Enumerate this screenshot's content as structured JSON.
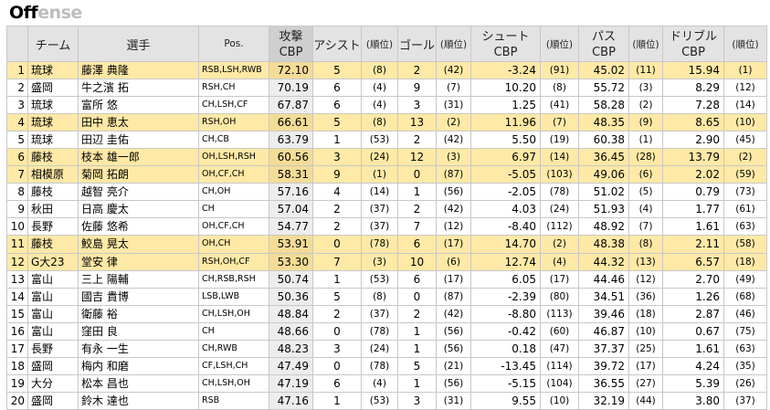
{
  "title_part1": "Off",
  "title_part2": "ense",
  "header": {
    "team": "チーム",
    "player": "選手",
    "pos": "Pos.",
    "attack": "攻撃",
    "assist": "アシスト",
    "rank": "(順位)",
    "goal": "ゴール",
    "shoot": "シュート",
    "pass": "パス",
    "dribble": "ドリブル",
    "cbp": "CBP"
  },
  "rows": [
    {
      "rank": "1",
      "team": "琉球",
      "player": "藤澤 典隆",
      "pos": "RSB,LSH,RWB",
      "cbp": "72.10",
      "assist": "5",
      "assist_rank": "(8)",
      "goal": "2",
      "goal_rank": "(42)",
      "shoot": "-3.24",
      "shoot_rank": "(91)",
      "pass": "45.02",
      "pass_rank": "(11)",
      "dribble": "15.94",
      "dribble_rank": "(1)",
      "hl": true
    },
    {
      "rank": "2",
      "team": "盛岡",
      "player": "牛之濱 拓",
      "pos": "RSH,CH",
      "cbp": "70.19",
      "assist": "6",
      "assist_rank": "(4)",
      "goal": "9",
      "goal_rank": "(7)",
      "shoot": "10.20",
      "shoot_rank": "(8)",
      "pass": "55.72",
      "pass_rank": "(3)",
      "dribble": "8.29",
      "dribble_rank": "(12)",
      "hl": false
    },
    {
      "rank": "3",
      "team": "琉球",
      "player": "富所 悠",
      "pos": "CH,LSH,CF",
      "cbp": "67.87",
      "assist": "6",
      "assist_rank": "(4)",
      "goal": "3",
      "goal_rank": "(31)",
      "shoot": "1.25",
      "shoot_rank": "(41)",
      "pass": "58.28",
      "pass_rank": "(2)",
      "dribble": "7.28",
      "dribble_rank": "(14)",
      "hl": false
    },
    {
      "rank": "4",
      "team": "琉球",
      "player": "田中 恵太",
      "pos": "RSH,OH",
      "cbp": "66.61",
      "assist": "5",
      "assist_rank": "(8)",
      "goal": "13",
      "goal_rank": "(2)",
      "shoot": "11.96",
      "shoot_rank": "(7)",
      "pass": "48.35",
      "pass_rank": "(9)",
      "dribble": "8.65",
      "dribble_rank": "(10)",
      "hl": true
    },
    {
      "rank": "5",
      "team": "琉球",
      "player": "田辺 圭佑",
      "pos": "CH,CB",
      "cbp": "63.79",
      "assist": "1",
      "assist_rank": "(53)",
      "goal": "2",
      "goal_rank": "(42)",
      "shoot": "5.50",
      "shoot_rank": "(19)",
      "pass": "60.38",
      "pass_rank": "(1)",
      "dribble": "2.90",
      "dribble_rank": "(45)",
      "hl": false
    },
    {
      "rank": "6",
      "team": "藤枝",
      "player": "枝本 雄一郎",
      "pos": "OH,LSH,RSH",
      "cbp": "60.56",
      "assist": "3",
      "assist_rank": "(24)",
      "goal": "12",
      "goal_rank": "(3)",
      "shoot": "6.97",
      "shoot_rank": "(14)",
      "pass": "36.45",
      "pass_rank": "(28)",
      "dribble": "13.79",
      "dribble_rank": "(2)",
      "hl": true
    },
    {
      "rank": "7",
      "team": "相模原",
      "player": "菊岡 拓朗",
      "pos": "OH,CF,CH",
      "cbp": "58.31",
      "assist": "9",
      "assist_rank": "(1)",
      "goal": "0",
      "goal_rank": "(87)",
      "shoot": "-5.05",
      "shoot_rank": "(103)",
      "pass": "49.06",
      "pass_rank": "(6)",
      "dribble": "2.02",
      "dribble_rank": "(59)",
      "hl": true
    },
    {
      "rank": "8",
      "team": "藤枝",
      "player": "越智 亮介",
      "pos": "CH,OH",
      "cbp": "57.16",
      "assist": "4",
      "assist_rank": "(14)",
      "goal": "1",
      "goal_rank": "(56)",
      "shoot": "-2.05",
      "shoot_rank": "(78)",
      "pass": "51.02",
      "pass_rank": "(5)",
      "dribble": "0.79",
      "dribble_rank": "(73)",
      "hl": false
    },
    {
      "rank": "9",
      "team": "秋田",
      "player": "日高 慶太",
      "pos": "CH",
      "cbp": "57.04",
      "assist": "2",
      "assist_rank": "(37)",
      "goal": "2",
      "goal_rank": "(42)",
      "shoot": "4.03",
      "shoot_rank": "(24)",
      "pass": "51.93",
      "pass_rank": "(4)",
      "dribble": "1.77",
      "dribble_rank": "(61)",
      "hl": false
    },
    {
      "rank": "10",
      "team": "長野",
      "player": "佐藤 悠希",
      "pos": "OH,CF,CH",
      "cbp": "54.77",
      "assist": "2",
      "assist_rank": "(37)",
      "goal": "7",
      "goal_rank": "(12)",
      "shoot": "-8.40",
      "shoot_rank": "(112)",
      "pass": "48.92",
      "pass_rank": "(7)",
      "dribble": "1.61",
      "dribble_rank": "(63)",
      "hl": false
    },
    {
      "rank": "11",
      "team": "藤枝",
      "player": "鮫島 晃太",
      "pos": "OH,CH",
      "cbp": "53.91",
      "assist": "0",
      "assist_rank": "(78)",
      "goal": "6",
      "goal_rank": "(17)",
      "shoot": "14.70",
      "shoot_rank": "(2)",
      "pass": "48.38",
      "pass_rank": "(8)",
      "dribble": "2.11",
      "dribble_rank": "(58)",
      "hl": true
    },
    {
      "rank": "12",
      "team": "G大23",
      "player": "堂安 律",
      "pos": "RSH,OH,CF",
      "cbp": "53.30",
      "assist": "7",
      "assist_rank": "(3)",
      "goal": "10",
      "goal_rank": "(6)",
      "shoot": "12.74",
      "shoot_rank": "(4)",
      "pass": "44.32",
      "pass_rank": "(13)",
      "dribble": "6.57",
      "dribble_rank": "(18)",
      "hl": true
    },
    {
      "rank": "13",
      "team": "富山",
      "player": "三上 陽輔",
      "pos": "CH,RSB,RSH",
      "cbp": "50.74",
      "assist": "1",
      "assist_rank": "(53)",
      "goal": "6",
      "goal_rank": "(17)",
      "shoot": "6.05",
      "shoot_rank": "(17)",
      "pass": "44.46",
      "pass_rank": "(12)",
      "dribble": "2.70",
      "dribble_rank": "(49)",
      "hl": false
    },
    {
      "rank": "14",
      "team": "富山",
      "player": "國吉 貴博",
      "pos": "LSB,LWB",
      "cbp": "50.36",
      "assist": "5",
      "assist_rank": "(8)",
      "goal": "0",
      "goal_rank": "(87)",
      "shoot": "-2.39",
      "shoot_rank": "(80)",
      "pass": "34.51",
      "pass_rank": "(36)",
      "dribble": "1.26",
      "dribble_rank": "(68)",
      "hl": false
    },
    {
      "rank": "15",
      "team": "富山",
      "player": "衛藤 裕",
      "pos": "CH,LSH,OH",
      "cbp": "48.84",
      "assist": "2",
      "assist_rank": "(37)",
      "goal": "2",
      "goal_rank": "(42)",
      "shoot": "-8.80",
      "shoot_rank": "(113)",
      "pass": "39.46",
      "pass_rank": "(18)",
      "dribble": "2.87",
      "dribble_rank": "(46)",
      "hl": false
    },
    {
      "rank": "16",
      "team": "富山",
      "player": "窪田 良",
      "pos": "CH",
      "cbp": "48.66",
      "assist": "0",
      "assist_rank": "(78)",
      "goal": "1",
      "goal_rank": "(56)",
      "shoot": "-0.42",
      "shoot_rank": "(60)",
      "pass": "46.87",
      "pass_rank": "(10)",
      "dribble": "0.67",
      "dribble_rank": "(75)",
      "hl": false
    },
    {
      "rank": "17",
      "team": "長野",
      "player": "有永 一生",
      "pos": "CH,RWB",
      "cbp": "48.23",
      "assist": "3",
      "assist_rank": "(24)",
      "goal": "1",
      "goal_rank": "(56)",
      "shoot": "0.18",
      "shoot_rank": "(47)",
      "pass": "37.37",
      "pass_rank": "(25)",
      "dribble": "1.61",
      "dribble_rank": "(63)",
      "hl": false
    },
    {
      "rank": "18",
      "team": "盛岡",
      "player": "梅内 和磨",
      "pos": "CF,LSH,CH",
      "cbp": "47.49",
      "assist": "0",
      "assist_rank": "(78)",
      "goal": "5",
      "goal_rank": "(21)",
      "shoot": "-13.45",
      "shoot_rank": "(114)",
      "pass": "39.72",
      "pass_rank": "(17)",
      "dribble": "4.24",
      "dribble_rank": "(35)",
      "hl": false
    },
    {
      "rank": "19",
      "team": "大分",
      "player": "松本 昌也",
      "pos": "CH,LSH,OH",
      "cbp": "47.19",
      "assist": "6",
      "assist_rank": "(4)",
      "goal": "1",
      "goal_rank": "(56)",
      "shoot": "-5.15",
      "shoot_rank": "(104)",
      "pass": "36.55",
      "pass_rank": "(27)",
      "dribble": "5.39",
      "dribble_rank": "(26)",
      "hl": false
    },
    {
      "rank": "20",
      "team": "盛岡",
      "player": "鈴木 達也",
      "pos": "RSB",
      "cbp": "47.16",
      "assist": "1",
      "assist_rank": "(53)",
      "goal": "3",
      "goal_rank": "(31)",
      "shoot": "9.55",
      "shoot_rank": "(10)",
      "pass": "32.19",
      "pass_rank": "(44)",
      "dribble": "3.80",
      "dribble_rank": "(37)",
      "hl": false
    }
  ]
}
